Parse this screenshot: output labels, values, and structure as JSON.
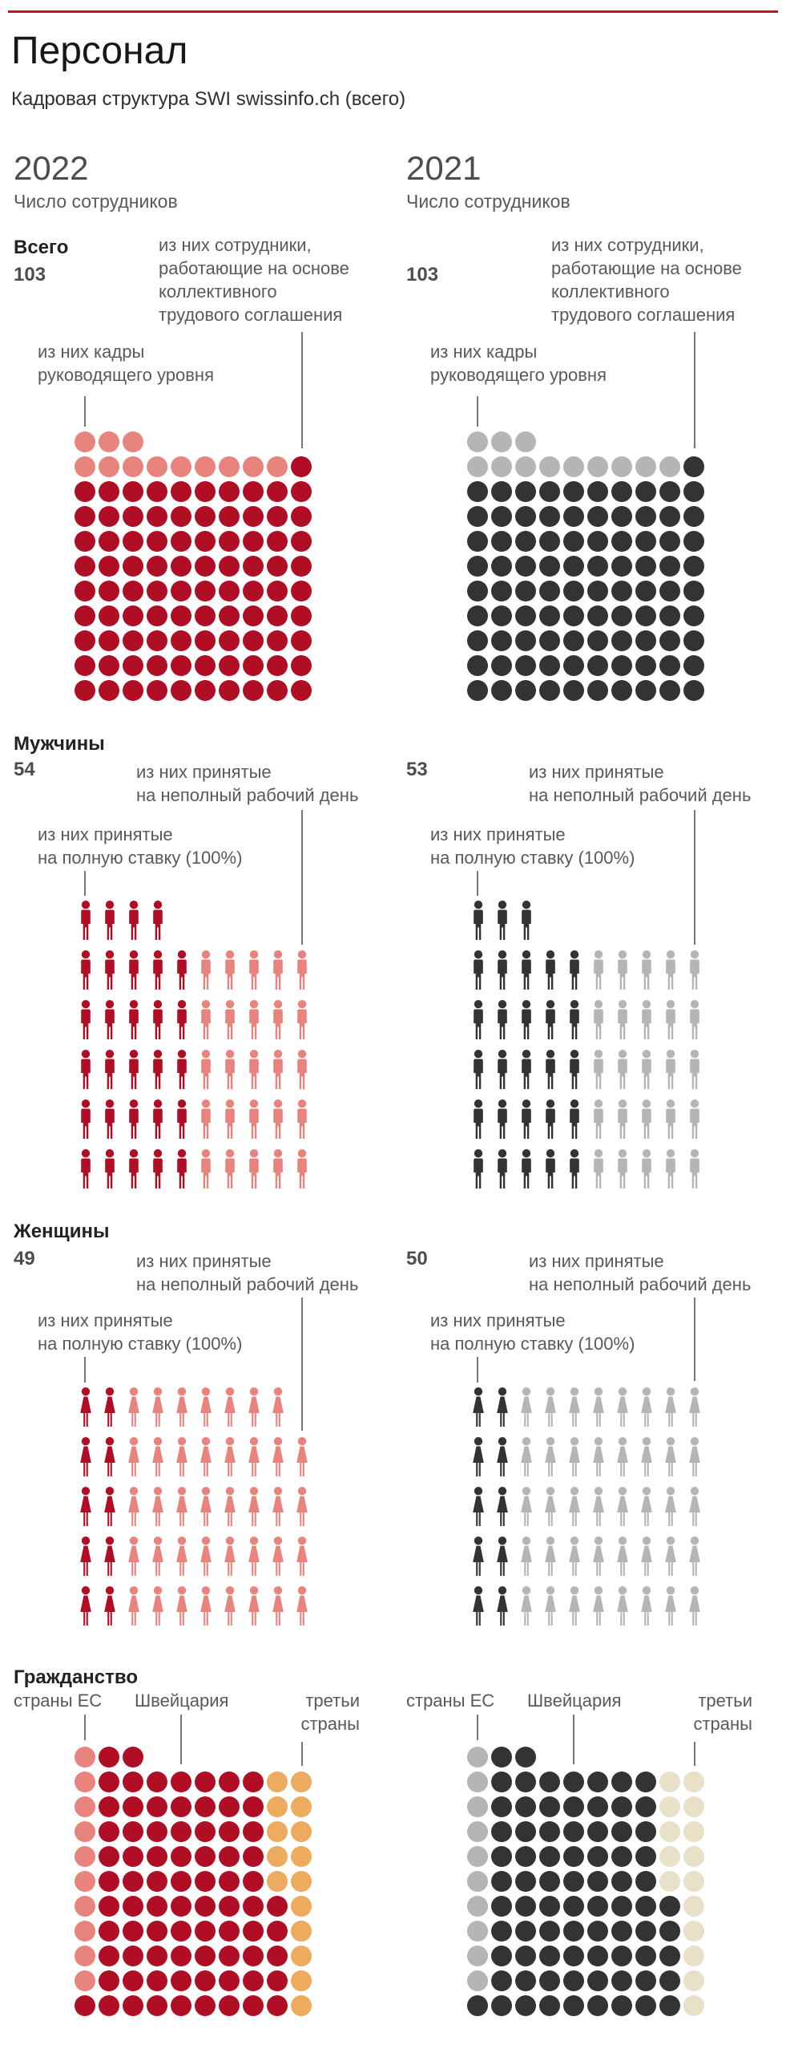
{
  "header": {
    "title": "Персонал",
    "subtitle": "Кадровая структура SWI swissinfo.ch (всего)",
    "rule_color": "#C41425"
  },
  "columns": [
    {
      "year": "2022",
      "caption": "Число сотрудников"
    },
    {
      "year": "2021",
      "caption": "Число сотрудников"
    }
  ],
  "sections": {
    "total": {
      "name": "Всего",
      "value_2022": "103",
      "value_2021": "103",
      "label_collective": "из них сотрудники,\nработающие на основе\nколлективного\nтрудового соглашения",
      "label_management": "из них кадры\nруководящего уровня"
    },
    "men": {
      "name": "Мужчины",
      "value_2022": "54",
      "value_2021": "53",
      "label_part_time": "из них принятые\nна неполный рабочий день",
      "label_full_time": "из них принятые\nна полную ставку (100%)"
    },
    "women": {
      "name": "Женщины",
      "value_2022": "49",
      "value_2021": "50",
      "label_part_time": "из них принятые\nна неполный рабочий день",
      "label_full_time": "из них принятые\nна полную ставку (100%)"
    },
    "citizenship": {
      "name": "Гражданство",
      "label_eu": "страны ЕС",
      "label_ch": "Швейцария",
      "label_third": "третьи\nстраны"
    }
  },
  "palette": {
    "red_2022": "#B00E25",
    "salmon_2022": "#E8837E",
    "orange_2022": "#ECAB5E",
    "dark_2021": "#333333",
    "gray_2021": "#B5B5B5",
    "beige_2021": "#E8E1C8",
    "pointer_line": "#767676"
  },
  "matrices": {
    "total2022": {
      "kind": "dot",
      "palette": {
        "a": "#E8837E",
        "b": "#B00E25"
      },
      "rows": [
        "aaa",
        "aaaaaaaaab",
        "bbbbbbbbbb",
        "bbbbbbbbbb",
        "bbbbbbbbbb",
        "bbbbbbbbbb",
        "bbbbbbbbbb",
        "bbbbbbbbbb",
        "bbbbbbbbbb",
        "bbbbbbbbbb",
        "bbbbbbbbbb"
      ]
    },
    "total2021": {
      "kind": "dot",
      "palette": {
        "a": "#B5B5B5",
        "b": "#333333"
      },
      "rows": [
        "aaa",
        "aaaaaaaaab",
        "bbbbbbbbbb",
        "bbbbbbbbbb",
        "bbbbbbbbbb",
        "bbbbbbbbbb",
        "bbbbbbbbbb",
        "bbbbbbbbbb",
        "bbbbbbbbbb",
        "bbbbbbbbbb",
        "bbbbbbbbbb"
      ]
    },
    "men2022": {
      "kind": "male",
      "palette": {
        "f": "#B00E25",
        "p": "#E8837E"
      },
      "rows": [
        "ffff",
        "fffffppppp",
        "fffffppppp",
        "fffffppppp",
        "fffffppppp",
        "fffffppppp"
      ]
    },
    "men2021": {
      "kind": "male",
      "palette": {
        "f": "#333333",
        "p": "#B5B5B5"
      },
      "rows": [
        "fff",
        "fffffppppp",
        "fffffppppp",
        "fffffppppp",
        "fffffppppp",
        "fffffppppp"
      ]
    },
    "women2022": {
      "kind": "female",
      "palette": {
        "f": "#B00E25",
        "p": "#E8837E"
      },
      "rows": [
        "ffppppppp",
        "ffpppppppp",
        "ffpppppppp",
        "ffpppppppp",
        "ffpppppppp"
      ]
    },
    "women2021": {
      "kind": "female",
      "palette": {
        "f": "#333333",
        "p": "#B5B5B5"
      },
      "rows": [
        "ffpppppppp",
        "ffpppppppp",
        "ffpppppppp",
        "ffpppppppp",
        "ffpppppppp"
      ]
    },
    "cit2022": {
      "kind": "dot",
      "palette": {
        "e": "#E8837E",
        "s": "#B00E25",
        "t": "#ECAB5E"
      },
      "rows": [
        "ess",
        "essssssstt",
        "essssssstt",
        "essssssstt",
        "essssssstt",
        "essssssstt",
        "esssssssst",
        "esssssssst",
        "esssssssst",
        "esssssssst",
        "ssssssssst"
      ]
    },
    "cit2021": {
      "kind": "dot",
      "palette": {
        "e": "#B5B5B5",
        "s": "#333333",
        "t": "#E8E1C8"
      },
      "rows": [
        "ess",
        "essssssstt",
        "essssssstt",
        "essssssstt",
        "essssssstt",
        "essssssstt",
        "esssssssst",
        "esssssssst",
        "esssssssst",
        "esssssssst",
        "ssssssssst"
      ]
    }
  },
  "chart_data": [
    {
      "type": "pictogram",
      "section": "Всего — число сотрудников",
      "categories": [
        "2022",
        "2021"
      ],
      "series": [
        {
          "name": "всего",
          "values": [
            103,
            103
          ]
        },
        {
          "name": "из них кадры руководящего уровня",
          "values": [
            12,
            12
          ]
        },
        {
          "name": "из них сотрудники, работающие на основе коллективного трудового соглашения",
          "values": [
            91,
            91
          ]
        }
      ],
      "legend_position": "pointer-lines",
      "grid": false
    },
    {
      "type": "pictogram",
      "section": "Мужчины",
      "categories": [
        "2022",
        "2021"
      ],
      "series": [
        {
          "name": "всего",
          "values": [
            54,
            53
          ]
        },
        {
          "name": "из них принятые на полную ставку (100%)",
          "values": [
            29,
            28
          ]
        },
        {
          "name": "из них принятые на неполный рабочий день",
          "values": [
            25,
            25
          ]
        }
      ],
      "legend_position": "pointer-lines",
      "grid": false
    },
    {
      "type": "pictogram",
      "section": "Женщины",
      "categories": [
        "2022",
        "2021"
      ],
      "series": [
        {
          "name": "всего",
          "values": [
            49,
            50
          ]
        },
        {
          "name": "из них принятые на полную ставку (100%)",
          "values": [
            10,
            10
          ]
        },
        {
          "name": "из них принятые на неполный рабочий день",
          "values": [
            39,
            40
          ]
        }
      ],
      "legend_position": "pointer-lines",
      "grid": false
    },
    {
      "type": "pictogram",
      "section": "Гражданство",
      "categories": [
        "2022",
        "2021"
      ],
      "series": [
        {
          "name": "страны ЕС",
          "values": [
            10,
            10
          ]
        },
        {
          "name": "Швейцария",
          "values": [
            78,
            78
          ]
        },
        {
          "name": "третьи страны",
          "values": [
            15,
            15
          ]
        }
      ],
      "legend_position": "top-labels",
      "grid": false
    }
  ]
}
